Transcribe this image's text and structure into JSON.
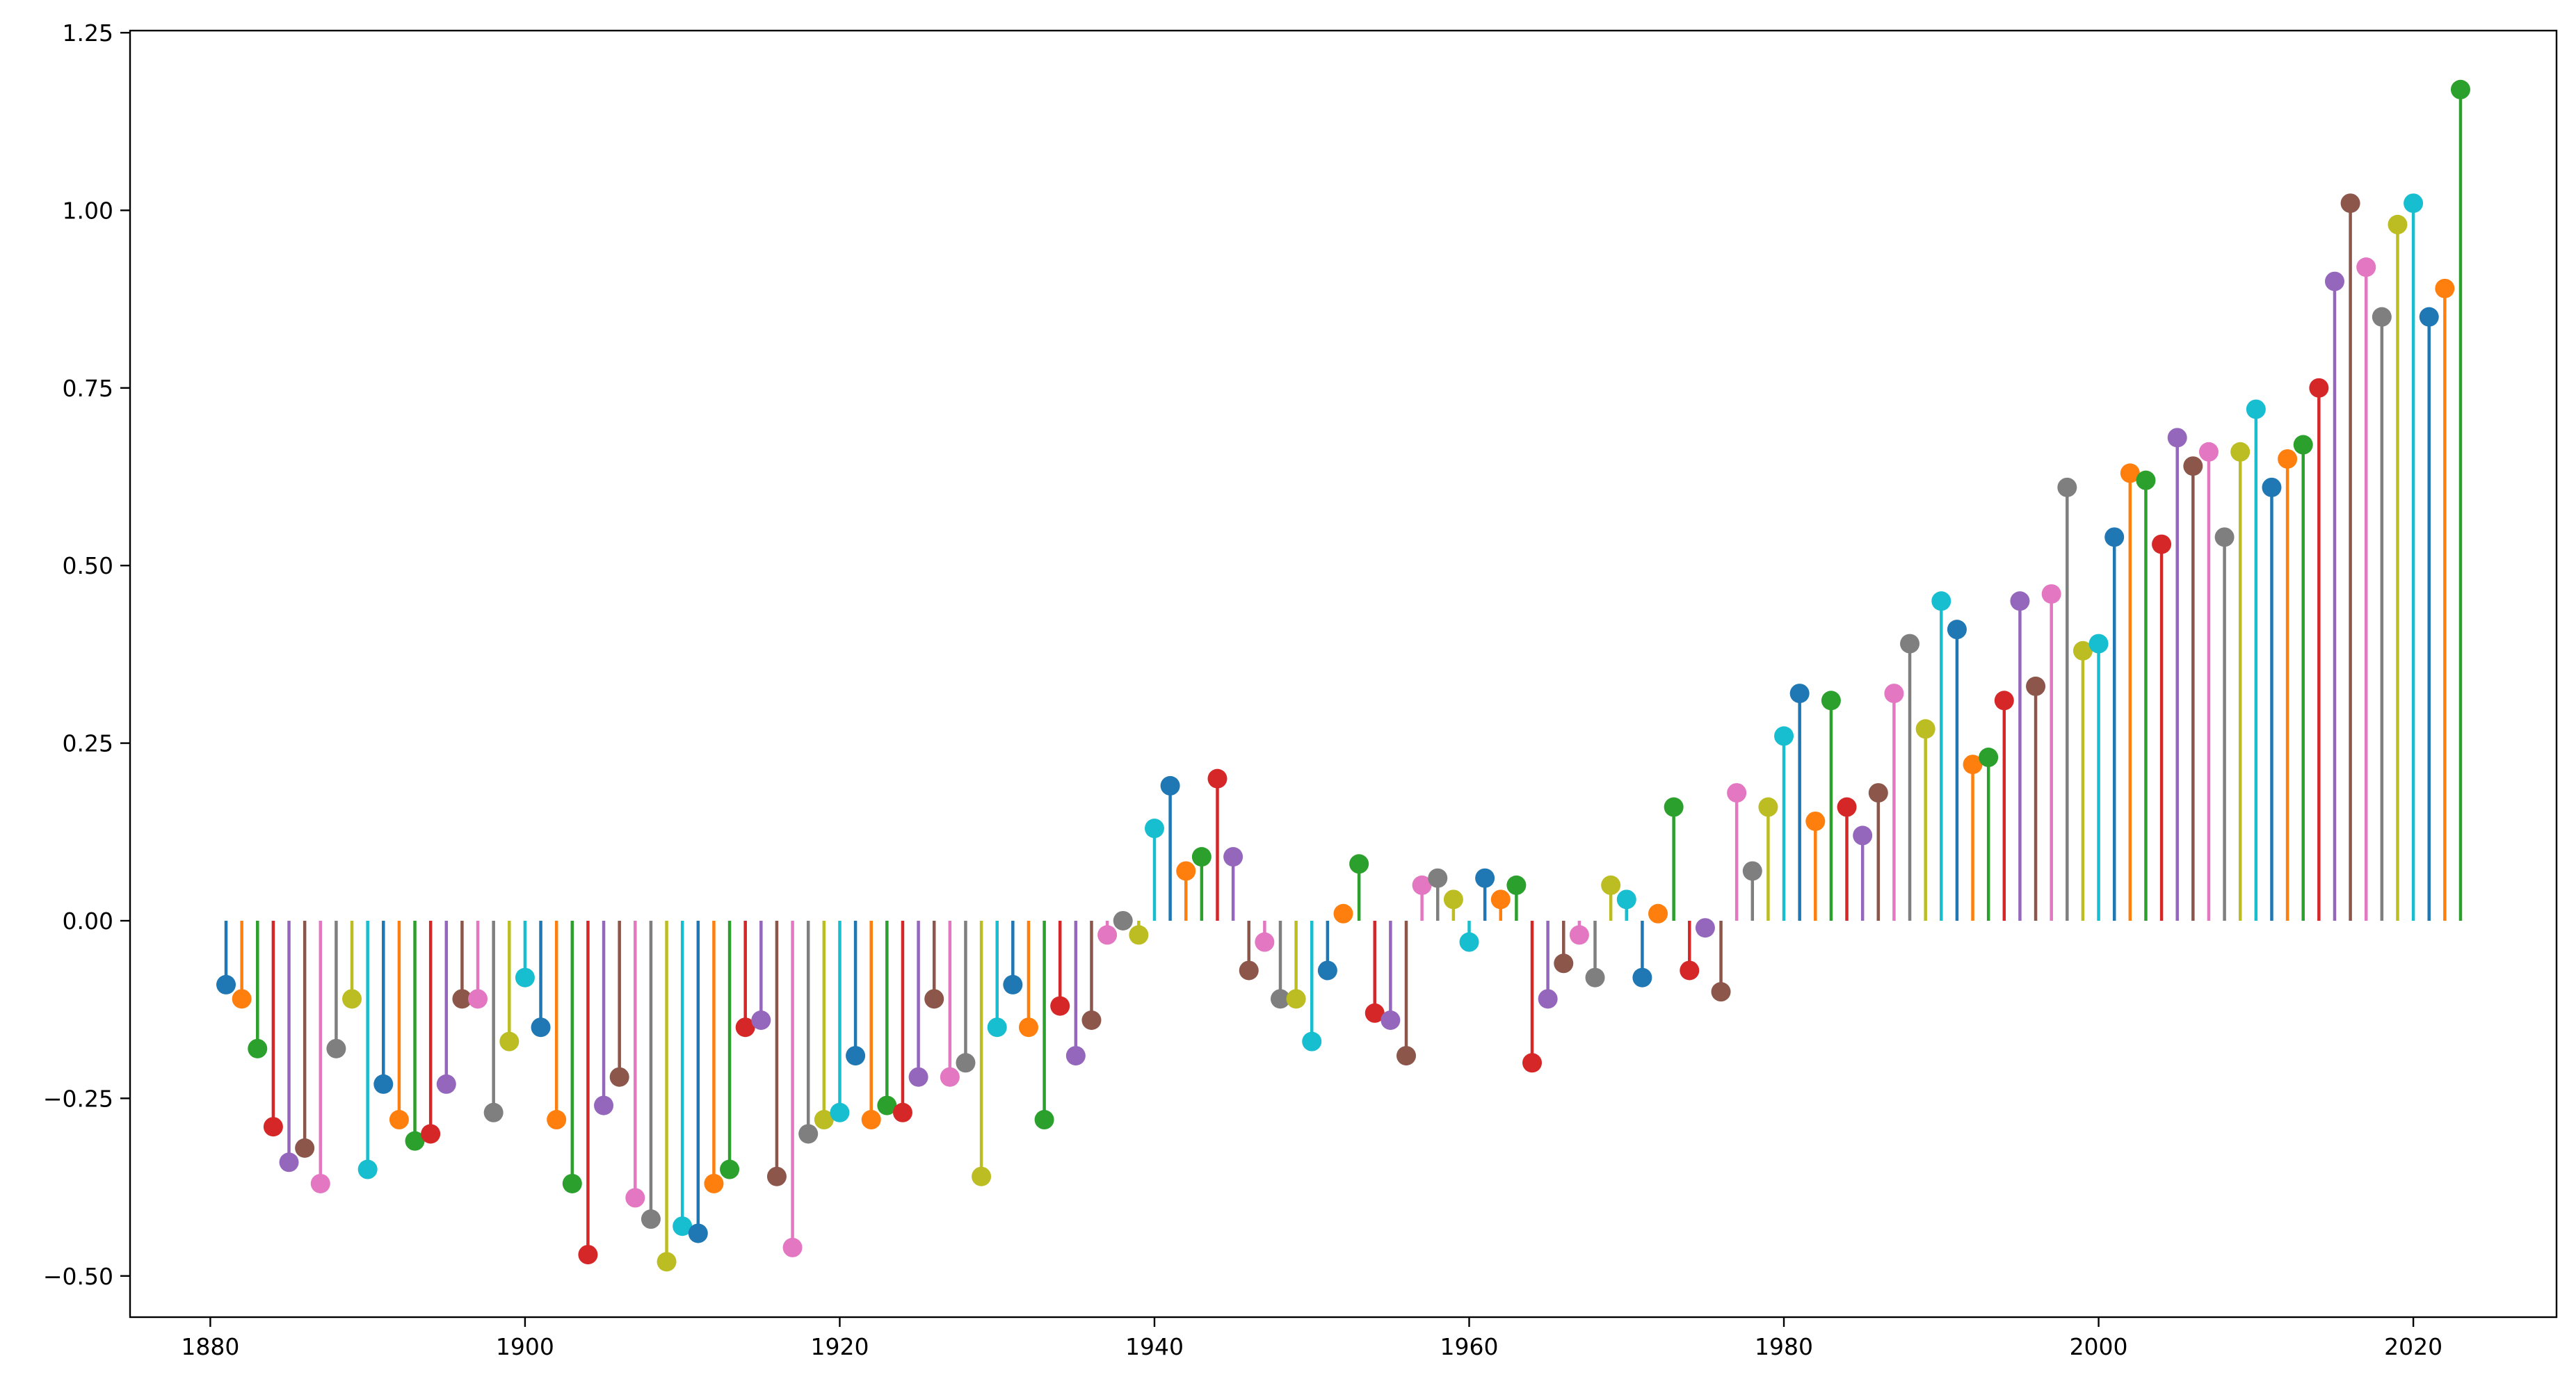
{
  "chart_data": {
    "type": "stem",
    "title": "",
    "xlabel": "",
    "ylabel": "",
    "xlim": [
      1874.9,
      2029.1
    ],
    "ylim": [
      -0.558,
      1.253
    ],
    "baseline": 0,
    "grid": false,
    "legend": "none",
    "x_ticks": [
      1880,
      1900,
      1920,
      1940,
      1960,
      1980,
      2000,
      2020
    ],
    "y_ticks": [
      -0.5,
      -0.25,
      0.0,
      0.25,
      0.5,
      0.75,
      1.0,
      1.25
    ],
    "x_tick_labels": [
      "1880",
      "1900",
      "1920",
      "1940",
      "1960",
      "1980",
      "2000",
      "2020"
    ],
    "y_tick_labels": [
      "−0.50",
      "−0.25",
      "0.00",
      "0.25",
      "0.50",
      "0.75",
      "1.00",
      "1.25"
    ],
    "color_cycle": [
      "#1f77b4",
      "#ff7f0e",
      "#2ca02c",
      "#d62728",
      "#9467bd",
      "#8c564b",
      "#e377c2",
      "#7f7f7f",
      "#bcbd22",
      "#17becf"
    ],
    "x_start": 1881,
    "values": [
      -0.09,
      -0.11,
      -0.18,
      -0.29,
      -0.34,
      -0.32,
      -0.37,
      -0.18,
      -0.11,
      -0.35,
      -0.23,
      -0.28,
      -0.31,
      -0.3,
      -0.23,
      -0.11,
      -0.11,
      -0.27,
      -0.17,
      -0.08,
      -0.15,
      -0.28,
      -0.37,
      -0.47,
      -0.26,
      -0.22,
      -0.39,
      -0.42,
      -0.48,
      -0.43,
      -0.44,
      -0.37,
      -0.35,
      -0.15,
      -0.14,
      -0.36,
      -0.46,
      -0.3,
      -0.28,
      -0.27,
      -0.19,
      -0.28,
      -0.26,
      -0.27,
      -0.22,
      -0.11,
      -0.22,
      -0.2,
      -0.36,
      -0.15,
      -0.09,
      -0.15,
      -0.28,
      -0.12,
      -0.19,
      -0.14,
      -0.02,
      0.0,
      -0.02,
      0.13,
      0.19,
      0.07,
      0.09,
      0.2,
      0.09,
      -0.07,
      -0.03,
      -0.11,
      -0.11,
      -0.17,
      -0.07,
      0.01,
      0.08,
      -0.13,
      -0.14,
      -0.19,
      0.05,
      0.06,
      0.03,
      -0.03,
      0.06,
      0.03,
      0.05,
      -0.2,
      -0.11,
      -0.06,
      -0.02,
      -0.08,
      0.05,
      0.03,
      -0.08,
      0.01,
      0.16,
      -0.07,
      -0.01,
      -0.1,
      0.18,
      0.07,
      0.16,
      0.26,
      0.32,
      0.14,
      0.31,
      0.16,
      0.12,
      0.18,
      0.32,
      0.39,
      0.27,
      0.45,
      0.41,
      0.22,
      0.23,
      0.31,
      0.45,
      0.33,
      0.46,
      0.61,
      0.38,
      0.39,
      0.54,
      0.63,
      0.62,
      0.53,
      0.68,
      0.64,
      0.66,
      0.54,
      0.66,
      0.72,
      0.61,
      0.65,
      0.67,
      0.75,
      0.9,
      1.01,
      0.92,
      0.85,
      0.98,
      1.01,
      0.85,
      0.89,
      1.17
    ]
  }
}
